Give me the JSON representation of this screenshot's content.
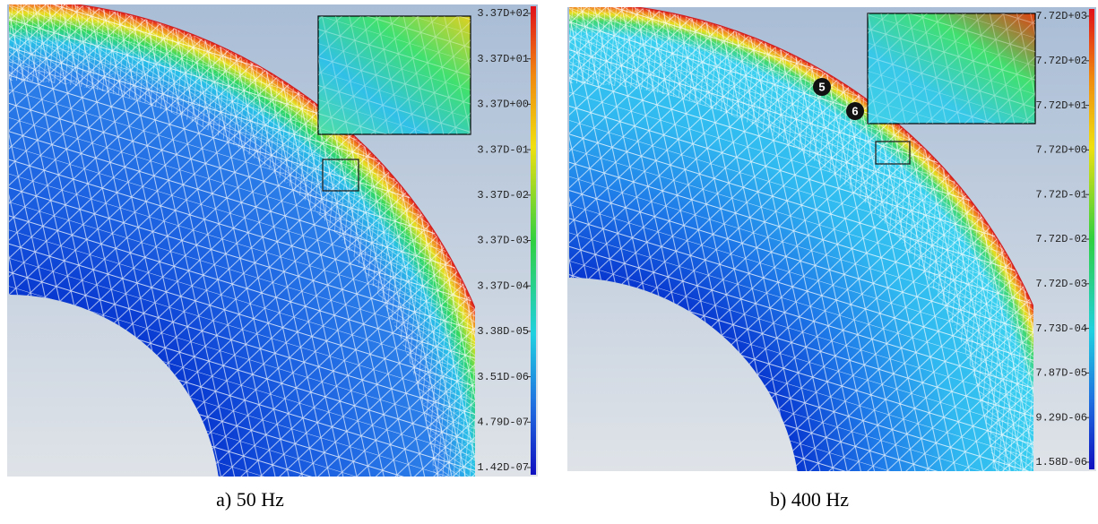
{
  "panels": [
    {
      "caption": "a) 50 Hz",
      "colorbar_labels": [
        "3.37D+02",
        "3.37D+01",
        "3.37D+00",
        "3.37D-01",
        "3.37D-02",
        "3.37D-03",
        "3.37D-04",
        "3.38D-05",
        "3.51D-06",
        "4.79D-07",
        "1.42D-07"
      ],
      "markers": []
    },
    {
      "caption": "b) 400 Hz",
      "colorbar_labels": [
        "7.72D+03",
        "7.72D+02",
        "7.72D+01",
        "7.72D+00",
        "7.72D-01",
        "7.72D-02",
        "7.72D-03",
        "7.73D-04",
        "7.87D-05",
        "9.29D-06",
        "1.58D-06"
      ],
      "markers": [
        "5",
        "6"
      ]
    }
  ]
}
